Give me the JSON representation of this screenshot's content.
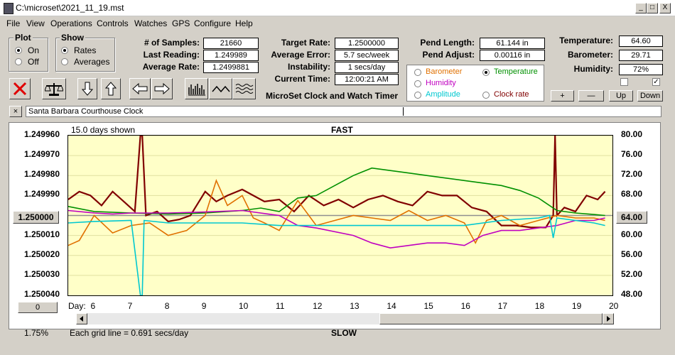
{
  "window": {
    "title": "C:\\microset\\2021_11_19.mst",
    "controls": [
      "_",
      "□",
      "X"
    ]
  },
  "menu": [
    "File",
    "View",
    "Operations",
    "Controls",
    "Watches",
    "GPS",
    "Configure",
    "Help"
  ],
  "plot_group": {
    "title": "Plot",
    "options": [
      "On",
      "Off"
    ],
    "selected": "On"
  },
  "show_group": {
    "title": "Show",
    "options": [
      "Rates",
      "Averages"
    ],
    "selected": "Rates"
  },
  "stats1": [
    {
      "label": "# of Samples:",
      "value": "21660"
    },
    {
      "label": "Last Reading:",
      "value": "1.249989"
    },
    {
      "label": "Average Rate:",
      "value": "1.2499881"
    }
  ],
  "stats2": [
    {
      "label": "Target Rate:",
      "value": "1.2500000"
    },
    {
      "label": "Average Error:",
      "value": "5.7 sec/week"
    },
    {
      "label": "Instability:",
      "value": "1 secs/day"
    },
    {
      "label": "Current Time:",
      "value": "12:00:21 AM"
    }
  ],
  "app_caption": "MicroSet Clock and Watch Timer",
  "pend": [
    {
      "label": "Pend Length:",
      "value": "61.144 in"
    },
    {
      "label": "Pend Adjust:",
      "value": "0.00116 in"
    }
  ],
  "env": [
    {
      "label": "Temperature:",
      "value": "64.60"
    },
    {
      "label": "Barometer:",
      "value": "29.71"
    },
    {
      "label": "Humidity:",
      "value": "72%"
    }
  ],
  "sensor_options": [
    {
      "label": "Barometer",
      "color": "#e07000",
      "selected": false
    },
    {
      "label": "Temperature",
      "color": "#009000",
      "selected": true
    },
    {
      "label": "Humidity",
      "color": "#c000c0",
      "selected": false
    },
    {
      "label": "Clock rate",
      "color": "#800000",
      "selected": false
    },
    {
      "label": "Amplitude",
      "color": "#00c8d0",
      "selected": false
    }
  ],
  "checkboxes": [
    {
      "checked": false
    },
    {
      "checked": true
    }
  ],
  "adjust_buttons": [
    "+",
    "—",
    "Up",
    "Down"
  ],
  "note": {
    "close": "×",
    "text": "Santa Barbara Courthouse Clock"
  },
  "chart": {
    "days_shown": "15.0 days shown",
    "top_label": "FAST",
    "bottom_label": "SLOW",
    "grid_note": "Each grid line = 0.691 secs/day",
    "percent": "1.75%",
    "center_left": "1.250000",
    "center_right": "64.00",
    "left_box": "0",
    "day_label": "Day:"
  },
  "chart_data": {
    "type": "line",
    "title": "",
    "xlabel": "Day",
    "x_ticks": [
      "6",
      "7",
      "8",
      "9",
      "10",
      "11",
      "12",
      "13",
      "14",
      "15",
      "16",
      "17",
      "18",
      "19",
      "20"
    ],
    "left_axis": {
      "ticks": [
        "1.249960",
        "1.249970",
        "1.249980",
        "1.249990",
        "1.250000",
        "1.250010",
        "1.250020",
        "1.250030",
        "1.250040"
      ],
      "range": [
        1.24996,
        1.25004
      ],
      "inverted": true
    },
    "right_axis": {
      "ticks": [
        "80.00",
        "76.00",
        "72.00",
        "68.00",
        "64.00",
        "60.00",
        "56.00",
        "52.00",
        "48.00"
      ],
      "range": [
        48,
        80
      ]
    },
    "series": [
      {
        "name": "Clock rate",
        "color": "#800000",
        "x": [
          5.3,
          5.6,
          5.9,
          6.2,
          6.5,
          6.8,
          7.1,
          7.25,
          7.3,
          7.4,
          7.7,
          8.0,
          8.3,
          8.6,
          9.0,
          9.3,
          9.6,
          10.0,
          10.3,
          10.6,
          11.0,
          11.4,
          11.8,
          12.2,
          12.6,
          13.0,
          13.4,
          13.8,
          14.2,
          14.6,
          15.0,
          15.4,
          15.8,
          16.2,
          16.6,
          17.0,
          17.4,
          17.8,
          18.2,
          18.4,
          18.45,
          18.5,
          18.7,
          19.0,
          19.3,
          19.6,
          19.8
        ],
        "y": [
          1.249992,
          1.249988,
          1.24999,
          1.249995,
          1.249988,
          1.249993,
          1.249998,
          1.24996,
          1.24996,
          1.25,
          1.249998,
          1.250003,
          1.250002,
          1.25,
          1.249988,
          1.249993,
          1.24999,
          1.249987,
          1.24999,
          1.249993,
          1.249992,
          1.249998,
          1.24999,
          1.249995,
          1.249992,
          1.249996,
          1.249992,
          1.24999,
          1.249993,
          1.249995,
          1.249988,
          1.24999,
          1.24999,
          1.249996,
          1.249998,
          1.250005,
          1.250005,
          1.250006,
          1.250006,
          1.25,
          1.24996,
          1.25,
          1.249996,
          1.249998,
          1.24999,
          1.249992,
          1.249988
        ]
      },
      {
        "name": "Temperature",
        "color": "#009000",
        "x": [
          5.3,
          6.0,
          7.0,
          8.0,
          9.0,
          10.0,
          10.5,
          11.0,
          11.5,
          12.0,
          12.5,
          13.0,
          13.5,
          14.0,
          14.5,
          15.0,
          15.5,
          16.0,
          16.5,
          17.0,
          17.5,
          18.0,
          18.5,
          19.0,
          19.5,
          19.8
        ],
        "y": [
          65.8,
          64.8,
          64.5,
          64.3,
          64.5,
          65.0,
          65.5,
          64.8,
          67.5,
          68.0,
          70.0,
          72.0,
          73.5,
          73.0,
          72.5,
          72.0,
          71.5,
          71.0,
          70.5,
          70.0,
          69.0,
          67.5,
          65.0,
          64.5,
          64.2,
          64.0
        ]
      },
      {
        "name": "Barometer",
        "color": "#e07000",
        "x": [
          5.3,
          5.6,
          6.0,
          6.5,
          7.0,
          7.5,
          8.0,
          8.5,
          9.0,
          9.3,
          9.6,
          10.0,
          10.3,
          10.6,
          11.0,
          11.5,
          12.0,
          12.5,
          13.0,
          13.5,
          14.0,
          14.5,
          15.0,
          15.5,
          16.0,
          16.3,
          16.6,
          17.0,
          17.5,
          18.0,
          18.5,
          19.0,
          19.5,
          19.8
        ],
        "y": [
          58.0,
          59.0,
          64.0,
          60.5,
          62.0,
          62.5,
          60.0,
          61.0,
          64.0,
          71.0,
          66.0,
          68.0,
          63.5,
          62.5,
          61.0,
          67.0,
          62.0,
          63.0,
          64.0,
          63.5,
          63.0,
          65.0,
          63.0,
          64.0,
          62.5,
          58.5,
          63.0,
          64.0,
          62.0,
          63.0,
          64.0,
          63.5,
          63.5,
          63.0
        ]
      },
      {
        "name": "Humidity",
        "color": "#c000c0",
        "x": [
          5.3,
          6.0,
          6.5,
          7.0,
          8.0,
          9.0,
          10.0,
          11.0,
          11.5,
          12.0,
          13.0,
          13.5,
          14.0,
          14.5,
          15.0,
          15.5,
          16.0,
          16.5,
          17.0,
          17.5,
          18.0,
          18.5,
          19.0,
          19.5,
          19.8
        ],
        "y": [
          65.0,
          64.5,
          64.3,
          64.5,
          64.5,
          64.7,
          65.0,
          64.0,
          62.0,
          61.5,
          60.0,
          58.5,
          57.5,
          58.0,
          58.5,
          58.5,
          58.0,
          60.0,
          61.0,
          61.0,
          61.5,
          62.0,
          63.0,
          63.0,
          63.5
        ]
      },
      {
        "name": "Amplitude",
        "color": "#00c8d0",
        "x": [
          5.3,
          6.0,
          7.0,
          7.25,
          7.3,
          7.35,
          8.0,
          9.0,
          10.0,
          11.0,
          12.0,
          13.0,
          14.0,
          15.0,
          16.0,
          17.0,
          18.0,
          18.3,
          18.4,
          18.5,
          19.0,
          19.5,
          19.8
        ],
        "y": [
          62.5,
          62.8,
          63.0,
          48.0,
          48.0,
          63.0,
          62.5,
          62.5,
          62.5,
          62.0,
          62.0,
          62.0,
          62.0,
          62.0,
          62.0,
          63.0,
          63.5,
          64.0,
          59.5,
          63.5,
          63.0,
          62.5,
          62.0
        ]
      }
    ]
  }
}
